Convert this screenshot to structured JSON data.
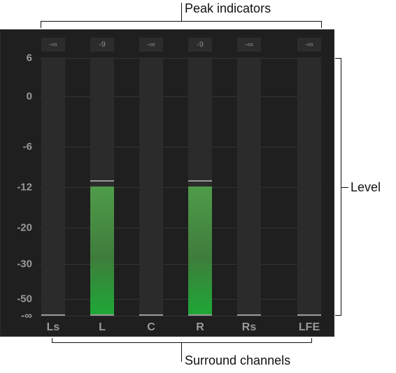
{
  "callouts": {
    "peak_indicators": "Peak indicators",
    "level": "Level",
    "surround_channels": "Surround channels"
  },
  "scale": [
    {
      "label": "6",
      "db": 6
    },
    {
      "label": "0",
      "db": 0
    },
    {
      "label": "-6",
      "db": -6
    },
    {
      "label": "-12",
      "db": -12
    },
    {
      "label": "-20",
      "db": -20
    },
    {
      "label": "-30",
      "db": -30
    },
    {
      "label": "-50",
      "db": -50
    },
    {
      "label": "-∞",
      "db": "-inf"
    }
  ],
  "channels": [
    {
      "name": "Ls",
      "peak_label": "-∞",
      "level_fraction": 0,
      "peak_fraction": 0
    },
    {
      "name": "L",
      "peak_label": "-9",
      "level_fraction": 0.5,
      "peak_fraction": 0.52
    },
    {
      "name": "C",
      "peak_label": "-∞",
      "level_fraction": 0,
      "peak_fraction": 0
    },
    {
      "name": "R",
      "peak_label": "-9",
      "level_fraction": 0.5,
      "peak_fraction": 0.52
    },
    {
      "name": "Rs",
      "peak_label": "-∞",
      "level_fraction": 0,
      "peak_fraction": 0
    },
    {
      "name": "LFE",
      "peak_label": "-∞",
      "level_fraction": 0,
      "peak_fraction": 0
    }
  ],
  "colors": {
    "meter_background": "#1f1f1f",
    "track": "#2b2b2b",
    "level_green": "#4f9b4a",
    "level_green_bottom": "#1da836",
    "text_gray": "#9a9a9a"
  }
}
